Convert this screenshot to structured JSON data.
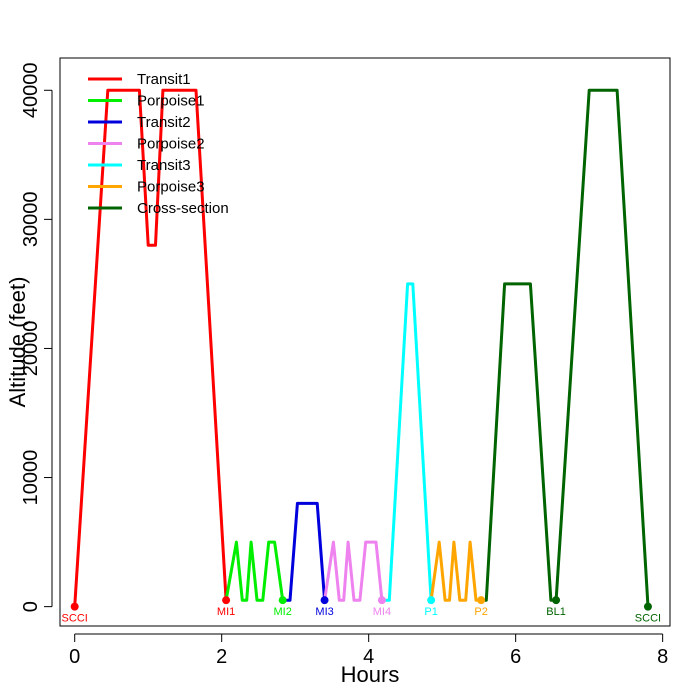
{
  "chart_data": {
    "type": "line",
    "title": "",
    "xlabel": "Hours",
    "ylabel": "Altitude (feet)",
    "xlim": [
      -0.2,
      8.1
    ],
    "ylim": [
      -1500,
      42500
    ],
    "x_ticks": [
      0,
      2,
      4,
      6,
      8
    ],
    "y_ticks": [
      0,
      10000,
      20000,
      30000,
      40000
    ],
    "grid": false,
    "legend_position": "top-left",
    "series": [
      {
        "name": "Transit1",
        "color": "#ff0000",
        "x": [
          0,
          0.45,
          0.88,
          1.0,
          1.1,
          1.2,
          1.65,
          2.06
        ],
        "y": [
          0,
          40000,
          40000,
          28000,
          28000,
          40000,
          40000,
          500
        ]
      },
      {
        "name": "Porpoise1",
        "color": "#00ee00",
        "x": [
          2.06,
          2.2,
          2.28,
          2.34,
          2.4,
          2.48,
          2.56,
          2.64,
          2.72,
          2.83
        ],
        "y": [
          500,
          5000,
          500,
          500,
          5000,
          500,
          500,
          5000,
          5000,
          500
        ]
      },
      {
        "name": "Transit2",
        "color": "#0000dd",
        "x": [
          2.83,
          2.93,
          3.03,
          3.3,
          3.4
        ],
        "y": [
          500,
          500,
          8000,
          8000,
          500
        ]
      },
      {
        "name": "Porpoise2",
        "color": "#ee82ee",
        "x": [
          3.4,
          3.52,
          3.6,
          3.66,
          3.72,
          3.8,
          3.88,
          3.96,
          4.1,
          4.18
        ],
        "y": [
          500,
          5000,
          500,
          500,
          5000,
          500,
          500,
          5000,
          5000,
          500
        ]
      },
      {
        "name": "Transit3",
        "color": "#00ffff",
        "x": [
          4.18,
          4.28,
          4.53,
          4.6,
          4.85
        ],
        "y": [
          500,
          500,
          25000,
          25000,
          500
        ]
      },
      {
        "name": "Porpoise3",
        "color": "#ffa500",
        "x": [
          4.85,
          4.96,
          5.04,
          5.1,
          5.16,
          5.24,
          5.32,
          5.38,
          5.46,
          5.53
        ],
        "y": [
          500,
          5000,
          500,
          500,
          5000,
          500,
          500,
          5000,
          500,
          500
        ]
      },
      {
        "name": "Cross-section",
        "color": "#006400",
        "x": [
          5.53,
          5.6,
          5.85,
          6.2,
          6.48,
          6.55,
          7.0,
          7.38,
          7.8
        ],
        "y": [
          500,
          500,
          25000,
          25000,
          500,
          500,
          40000,
          40000,
          0
        ]
      }
    ],
    "waypoints": [
      {
        "label": "SCCI",
        "x": 0,
        "y": 0,
        "color": "#ff0000"
      },
      {
        "label": "MI1",
        "x": 2.06,
        "y": 500,
        "color": "#ff0000"
      },
      {
        "label": "MI2",
        "x": 2.83,
        "y": 500,
        "color": "#00ee00"
      },
      {
        "label": "MI3",
        "x": 3.4,
        "y": 500,
        "color": "#0000dd"
      },
      {
        "label": "MI4",
        "x": 4.18,
        "y": 500,
        "color": "#ee82ee"
      },
      {
        "label": "P1",
        "x": 4.85,
        "y": 500,
        "color": "#00ffff"
      },
      {
        "label": "P2",
        "x": 5.53,
        "y": 500,
        "color": "#ffa500"
      },
      {
        "label": "BL1",
        "x": 6.55,
        "y": 500,
        "color": "#006400"
      },
      {
        "label": "SCCI",
        "x": 7.8,
        "y": 0,
        "color": "#006400"
      }
    ]
  }
}
